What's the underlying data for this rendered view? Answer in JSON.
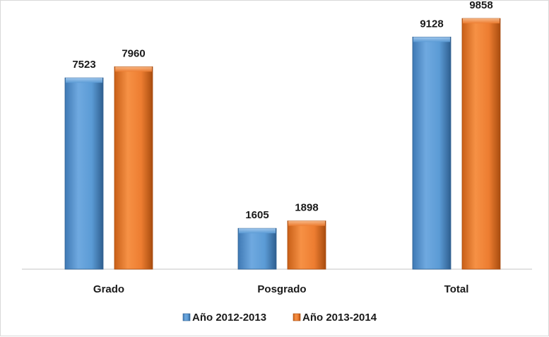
{
  "chart_data": {
    "type": "bar",
    "categories": [
      "Grado",
      "Posgrado",
      "Total"
    ],
    "series": [
      {
        "name": "Año 2012-2013",
        "values": [
          7523,
          1605,
          9128
        ],
        "color": "#5b9bd5"
      },
      {
        "name": "Año 2013-2014",
        "values": [
          7960,
          1898,
          9858
        ],
        "color": "#ed7d31"
      }
    ],
    "ylim": [
      0,
      10000
    ],
    "grid": false,
    "legend": "bottom"
  }
}
